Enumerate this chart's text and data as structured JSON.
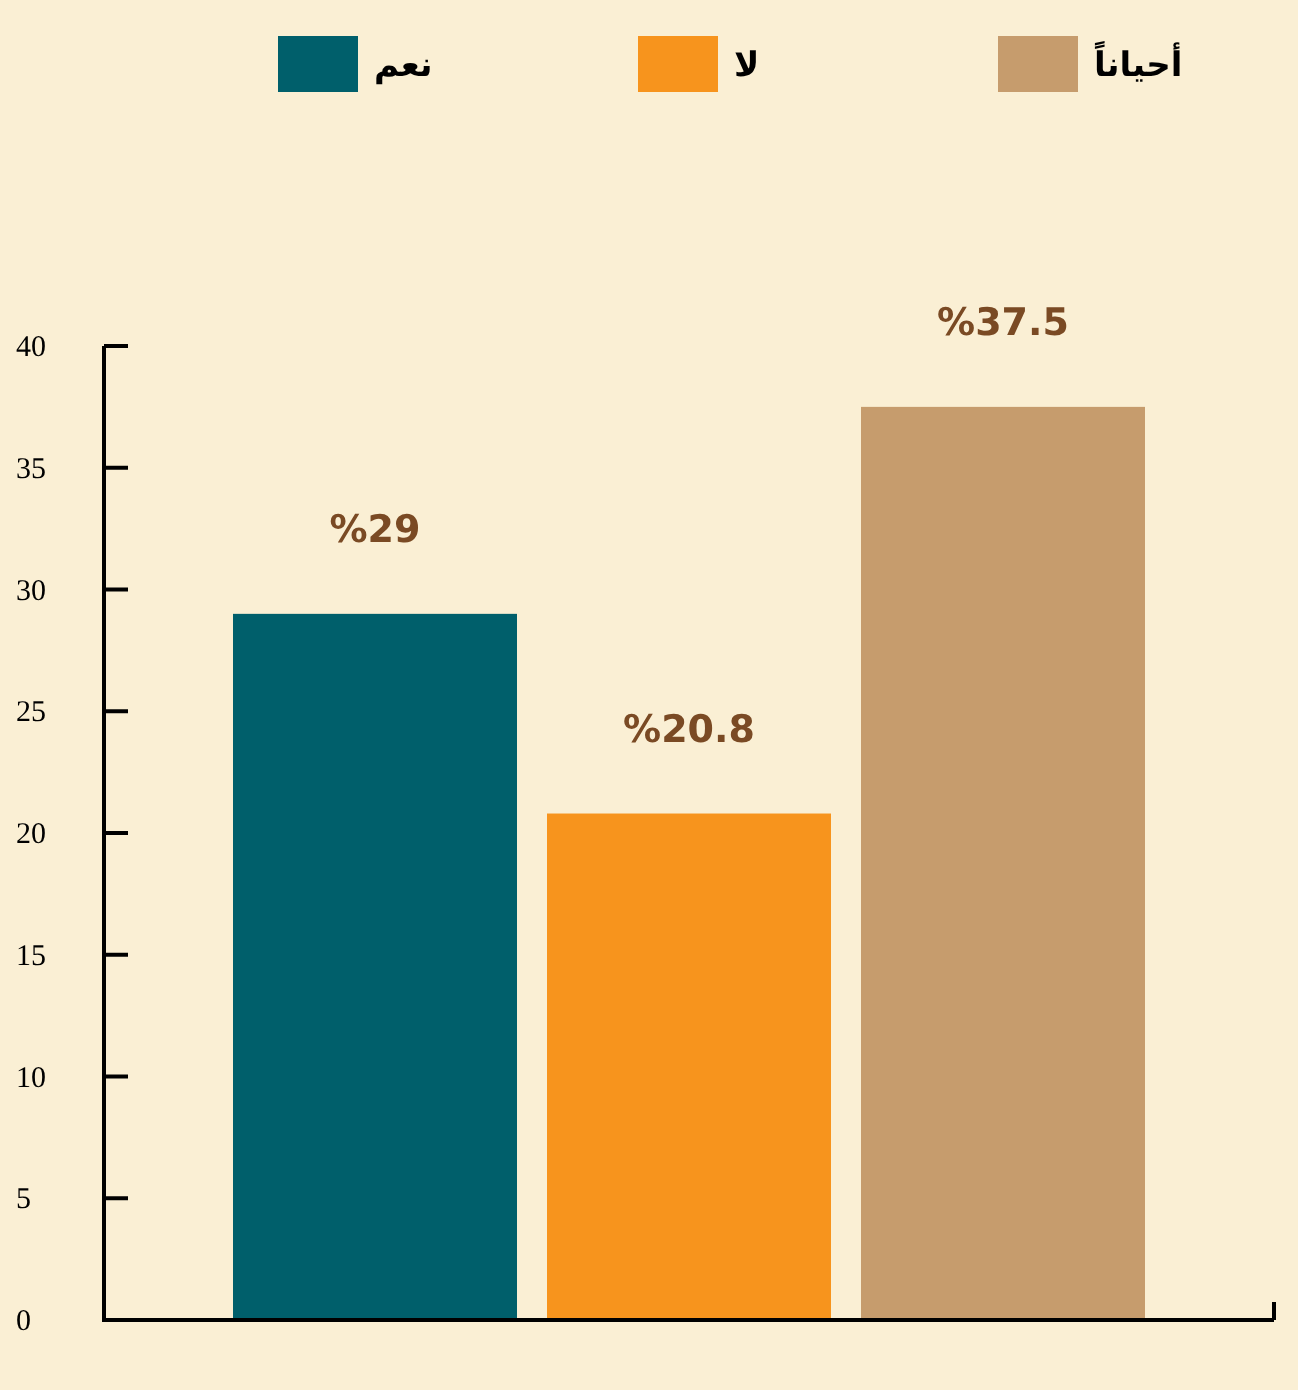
{
  "chart_data": {
    "type": "bar",
    "categories": [
      null
    ],
    "series": [
      {
        "name": "نعم",
        "color": "#005f6b",
        "values": [
          29
        ],
        "value_labels": [
          "%29"
        ]
      },
      {
        "name": "لا",
        "color": "#f7941d",
        "values": [
          20.8
        ],
        "value_labels": [
          "%20.8"
        ]
      },
      {
        "name": "أحياناً",
        "color": "#c69c6d",
        "values": [
          37.5
        ],
        "value_labels": [
          "%37.5"
        ]
      }
    ],
    "ylim": [
      0,
      40
    ],
    "yticks": [
      0,
      5,
      10,
      15,
      20,
      25,
      30,
      35,
      40
    ],
    "legend": "top"
  }
}
